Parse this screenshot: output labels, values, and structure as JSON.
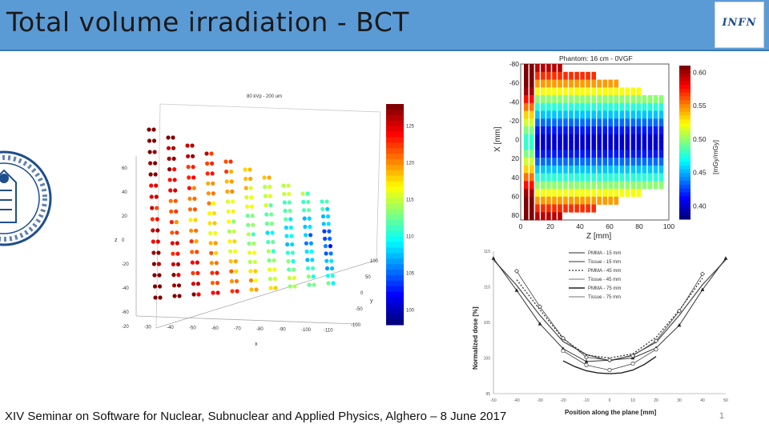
{
  "slide": {
    "title": "Total volume irradiation - BCT",
    "logo_text": "INFN",
    "footer": "XIV Seminar on Software for Nuclear, Subnuclear and Applied Physics, Alghero – 8 June 2017",
    "page_number": "1"
  },
  "chart_data": [
    {
      "type": "scatter",
      "title": "80 kVp - 200 um",
      "xlabel": "x",
      "ylabel": "z",
      "zlabel": "y",
      "z_ticks": [
        "60",
        "40",
        "20",
        "0",
        "-20",
        "-40",
        "-60"
      ],
      "x_ticks": [
        "-20",
        "-30",
        "-40",
        "-50",
        "-60",
        "-70",
        "-80",
        "-90",
        "-100",
        "-110"
      ],
      "y_ticks": [
        "100",
        "50",
        "0",
        "-50",
        "-100"
      ],
      "colorbar_ticks": [
        "125",
        "120",
        "115",
        "110",
        "105",
        "100"
      ],
      "colorbar_range": [
        98,
        128
      ]
    },
    {
      "type": "heatmap",
      "title": "Phantom: 16 cm - 0VGF",
      "xlabel": "Z [mm]",
      "ylabel": "X [mm]",
      "colorbar_label": "[mGy/mGy]",
      "x_ticks": [
        "0",
        "20",
        "40",
        "60",
        "80",
        "100"
      ],
      "y_ticks": [
        "-80",
        "-60",
        "-40",
        "-20",
        "0",
        "20",
        "40",
        "60",
        "80"
      ],
      "colorbar_ticks": [
        "0.60",
        "0.55",
        "0.50",
        "0.45",
        "0.40"
      ],
      "colorbar_range": [
        0.38,
        0.61
      ]
    },
    {
      "type": "line",
      "xlabel": "Position along the plane [mm]",
      "ylabel": "Normalized dose [%]",
      "ylim": [
        95,
        115
      ],
      "xlim": [
        -50,
        50
      ],
      "x_ticks": [
        "-50",
        "-40",
        "-30",
        "-20",
        "-10",
        "0",
        "10",
        "20",
        "30",
        "40",
        "50"
      ],
      "y_ticks": [
        "115",
        "110",
        "105",
        "100",
        "95"
      ],
      "series": [
        {
          "name": "PMMA - 15 mm",
          "x": [
            -50,
            -40,
            -30,
            -20,
            -10,
            0,
            10,
            20,
            30,
            40,
            50
          ],
          "values": [
            113.8,
            110.2,
            106.0,
            102.3,
            100.5,
            99.6,
            100.4,
            102.2,
            106.0,
            110.3,
            113.8
          ]
        },
        {
          "name": "Tissue - 15 mm",
          "x": [
            -50,
            -40,
            -30,
            -20,
            -10,
            0,
            10,
            20,
            30,
            40,
            50
          ],
          "values": [
            114.0,
            109.5,
            104.8,
            101.3,
            99.5,
            99.7,
            100.0,
            101.4,
            104.6,
            109.6,
            114.0
          ]
        },
        {
          "name": "PMMA - 45 mm",
          "x": [
            -40,
            -30,
            -20,
            -10,
            0,
            10,
            20,
            30,
            40
          ],
          "values": [
            111.0,
            106.8,
            102.7,
            100.4,
            100.0,
            100.6,
            102.9,
            106.7,
            111.2
          ]
        },
        {
          "name": "Tissue - 45 mm",
          "x": [
            -40,
            -30,
            -20,
            -10,
            0,
            10,
            20,
            30,
            40
          ],
          "values": [
            112.2,
            107.2,
            102.8,
            100.1,
            99.7,
            100.3,
            102.4,
            106.6,
            111.8
          ]
        },
        {
          "name": "PMMA - 75 mm",
          "x": [
            -20,
            -15,
            -10,
            -5,
            0,
            5,
            10,
            15,
            20
          ],
          "values": [
            99.6,
            98.8,
            98.2,
            97.9,
            97.8,
            97.9,
            98.3,
            99.1,
            100.2
          ]
        },
        {
          "name": "Tissue - 75 mm",
          "x": [
            -20,
            -10,
            0,
            10,
            20
          ],
          "values": [
            101.0,
            99.0,
            98.3,
            99.2,
            101.2
          ]
        }
      ]
    }
  ]
}
